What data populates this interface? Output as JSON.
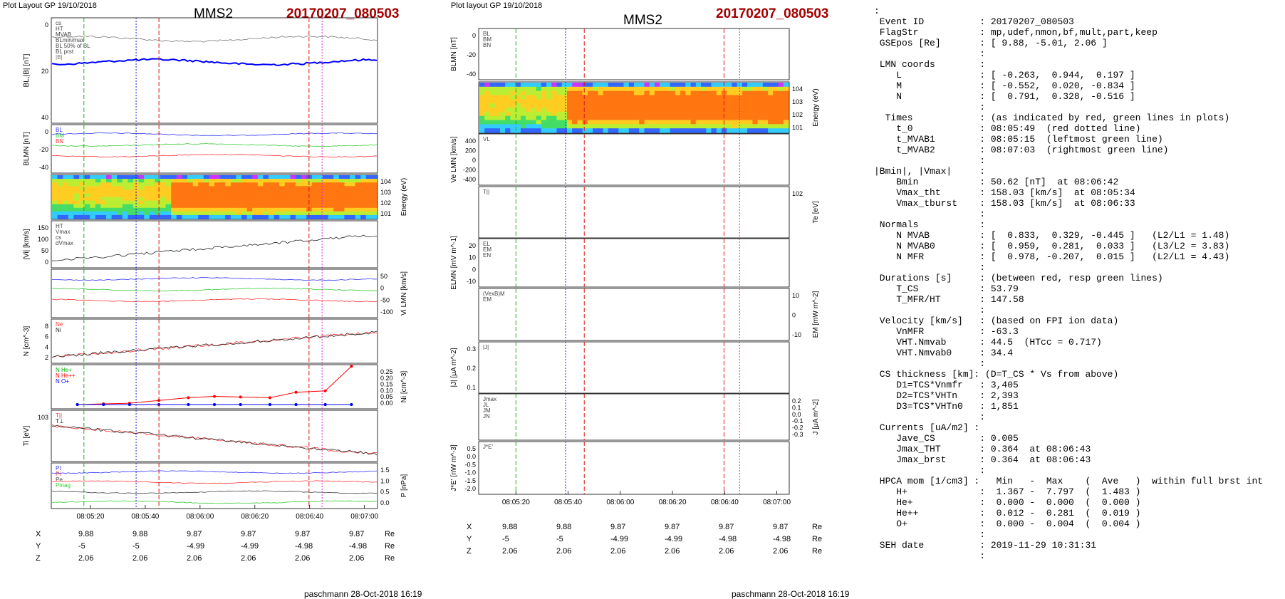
{
  "left_plot": {
    "layout_label": "Plot Layout GP 19/10/2018",
    "spacecraft": "MMS2",
    "event": "20170207_080503",
    "footer": "paschmann 28-Oct-2018 16:19",
    "time_ticks": [
      "08:05:20",
      "08:05:40",
      "08:06:00",
      "08:06:20",
      "08:06:40",
      "08:07:00"
    ],
    "pos_rows": [
      {
        "label": "X",
        "values": [
          "9.88",
          "9.88",
          "9.87",
          "9.87",
          "9.87",
          "9.87"
        ],
        "unit": "Re"
      },
      {
        "label": "Y",
        "values": [
          "-5",
          "-5",
          "-4.99",
          "-4.99",
          "-4.98",
          "-4.98"
        ],
        "unit": "Re"
      },
      {
        "label": "Z",
        "values": [
          "2.06",
          "2.06",
          "2.06",
          "2.06",
          "2.06",
          "2.06"
        ],
        "unit": "Re"
      }
    ]
  },
  "right_plot": {
    "layout_label": "Plot layout GP 19/10/2018",
    "spacecraft": "MMS2",
    "event": "20170207_080503",
    "footer": "paschmann 28-Oct-2018 16:19",
    "time_ticks": [
      "08:05:20",
      "08:05:40",
      "08:06:00",
      "08:06:20",
      "08:06:40",
      "08:07:00"
    ],
    "pos_rows": [
      {
        "label": "X",
        "values": [
          "9.88",
          "9.88",
          "9.87",
          "9.87",
          "9.87",
          "9.87"
        ],
        "unit": "Re"
      },
      {
        "label": "Y",
        "values": [
          "-5",
          "-5",
          "-4.99",
          "-4.99",
          "-4.98",
          "-4.98"
        ],
        "unit": "Re"
      },
      {
        "label": "Z",
        "values": [
          "2.06",
          "2.06",
          "2.06",
          "2.06",
          "2.06",
          "2.06"
        ],
        "unit": "Re"
      }
    ]
  },
  "summary_text": ":\n Event ID          : 20170207_080503\n FlagStr           : mp,udef,nmon,bf,mult,part,keep\n GSEpos [Re]       : [ 9.88, -5.01, 2.06 ]\n                   :\n LMN coords        :\n    L              : [ -0.263,  0.944,  0.197 ]\n    M              : [ -0.552,  0.020, -0.834 ]\n    N              : [  0.791,  0.328, -0.516 ]\n                   :\n  Times            : (as indicated by red, green lines in plots)\n    t_0            : 08:05:49  (red dotted line)\n    t_MVAB1        : 08:05:15  (leftmost green line)\n    t_MVAB2        : 08:07:03  (rightmost green line)\n                   :\n|Bmin|, |Vmax|     :\n    Bmin           : 50.62 [nT]  at 08:06:42\n    Vmax_tht       : 158.03 [km/s]  at 08:05:34\n    Vmax_tburst    : 158.03 [km/s]  at 08:06:33\n                   :\n Normals           :\n    N MVAB         : [  0.833,  0.329, -0.445 ]   (L2/L1 = 1.48)\n    N MVAB0        : [  0.959,  0.281,  0.033 ]   (L3/L2 = 3.83)\n    N MFR          : [  0.978, -0.207,  0.015 ]   (L2/L1 = 4.43)\n                   :\n Durations [s]     : (between red, resp green lines)\n    T_CS           : 53.79\n    T_MFR/HT       : 147.58\n                   :\n Velocity [km/s]   : (based on FPI ion data)\n    VnMFR          : -63.3\n    VHT.Nmvab      : 44.5  (HTcc = 0.717)\n    VHT.Nmvab0     : 34.4\n                   :\n CS thickness [km]: (D=T_CS * Vs from above)\n    D1=TCS*Vnmfr   : 3,405\n    D2=TCS*VHTn    : 2,393\n    D3=TCS*VHTn0   : 1,851\n                   :\n Currents [uA/m2] :\n    Jave_CS        : 0.005\n    Jmax_THT       : 0.364  at 08:06:43\n    Jmax_brst      : 0.364  at 08:06:43\n                   :\n HPCA mom [1/cm3] :   Min   -  Max    (  Ave   )  within full brst int\n    H+             :  1.367 -  7.797  (  1.483 )\n    He+            :  0.000 -  0.000  (  0.000 )\n    He++           :  0.012 -  0.281  (  0.019 )\n    O+             :  0.000 -  0.004  (  0.004 )\n                   :\n SEH date          : 2019-11-29 10:31:31\n                   :",
  "chart_data": [
    {
      "type": "line",
      "title": "MMS2 20170207_080503 (left stack)",
      "x_ticks": [
        "08:05:20",
        "08:05:40",
        "08:06:00",
        "08:06:20",
        "08:06:40",
        "08:07:00"
      ],
      "panels": [
        {
          "name": "B",
          "ylabel": "BL,|B| [nT]",
          "ticks": [
            "0",
            "20",
            "40"
          ],
          "legend": [
            "cs",
            "HT",
            "MVAB",
            "BLmin/max",
            "BL 50% of BL",
            "BL prst",
            "|B|"
          ],
          "series": [
            {
              "name": "|B|",
              "color": "#777777"
            },
            {
              "name": "BL",
              "color": "#0000ff"
            }
          ]
        },
        {
          "name": "BLMN",
          "ylabel": "BLMN [nT]",
          "ticks": [
            "0",
            "-20",
            "-40"
          ],
          "legend": [
            "BL",
            "BM",
            "BN"
          ],
          "series": [
            {
              "name": "BL",
              "color": "#3333ff"
            },
            {
              "name": "BM",
              "color": "#33cc33"
            },
            {
              "name": "BN",
              "color": "#ff3333"
            }
          ]
        },
        {
          "name": "spectrogram",
          "ylabel": "Energy (eV)",
          "ticks": [
            "10^4",
            "10^3",
            "10^2",
            "10^1"
          ]
        },
        {
          "name": "Vi",
          "ylabel": "|Vi| [km/s]",
          "ticks": [
            "150",
            "100",
            "50",
            "0"
          ],
          "legend": [
            "HT",
            "Vmax",
            "cs",
            "dVmax"
          ],
          "series": [
            {
              "name": "|Vi|",
              "color": "#222222"
            }
          ]
        },
        {
          "name": "ViLMN",
          "ylabel": "Vi LMN [km/s]",
          "ticks": [
            "50",
            "0",
            "-50",
            "-100"
          ],
          "series": [
            {
              "name": "VL",
              "color": "#3333ff"
            },
            {
              "name": "VM",
              "color": "#33cc33"
            },
            {
              "name": "VN",
              "color": "#ff3333"
            }
          ]
        },
        {
          "name": "N",
          "ylabel": "N [cm^-3]",
          "ticks": [
            "8",
            "6",
            "4",
            "2"
          ],
          "legend": [
            "Ne",
            "Ni"
          ],
          "series": [
            {
              "name": "Ne",
              "color": "#ff3333"
            },
            {
              "name": "Ni",
              "color": "#222222"
            }
          ]
        },
        {
          "name": "Ni",
          "ylabel": "Ni [cm^-3]",
          "ticks": [
            "0.25",
            "0.20",
            "0.15",
            "0.10",
            "0.05",
            "0.00"
          ],
          "legend": [
            "N He+",
            "N He++",
            "N O+"
          ],
          "x": [
            0.08,
            0.16,
            0.24,
            0.33,
            0.42,
            0.5,
            0.58,
            0.67,
            0.75,
            0.84,
            0.92
          ],
          "series": [
            {
              "name": "N He++",
              "color": "#ff0000",
              "values": [
                0.0,
                0.005,
                0.01,
                0.03,
                0.05,
                0.06,
                0.055,
                0.05,
                0.09,
                0.1,
                0.28
              ]
            },
            {
              "name": "N He+",
              "color": "#00aa00",
              "values": [
                0,
                0,
                0,
                0,
                0,
                0,
                0,
                0,
                0,
                0,
                0
              ]
            },
            {
              "name": "N O+",
              "color": "#0000ff",
              "values": [
                0,
                0,
                0,
                0,
                0,
                0,
                0,
                0,
                0,
                0,
                0
              ]
            }
          ]
        },
        {
          "name": "Ti",
          "ylabel": "Ti [eV]",
          "ticks": [
            "10^3"
          ],
          "legend": [
            "T||",
            "T⊥"
          ],
          "series": [
            {
              "name": "T||",
              "color": "#ff3333"
            },
            {
              "name": "T⊥",
              "color": "#222222"
            }
          ]
        },
        {
          "name": "P",
          "ylabel": "P [nPa]",
          "ticks": [
            "1.5",
            "1.0",
            "0.5",
            "0.0"
          ],
          "legend": [
            "Pt",
            "Pi",
            "Pe",
            "Pmag"
          ],
          "series": [
            {
              "name": "Pt",
              "color": "#3333ff"
            },
            {
              "name": "Pi",
              "color": "#ff3333"
            },
            {
              "name": "Pe",
              "color": "#444444"
            },
            {
              "name": "Pmag",
              "color": "#33cc33"
            }
          ]
        }
      ]
    },
    {
      "type": "line",
      "title": "MMS2 20170207_080503 (right stack)",
      "x_ticks": [
        "08:05:20",
        "08:05:40",
        "08:06:00",
        "08:06:20",
        "08:06:40",
        "08:07:00"
      ],
      "panels": [
        {
          "name": "BLMN",
          "ylabel": "BLMN [nT]",
          "ticks": [
            "0",
            "-20",
            "-40"
          ],
          "legend": [
            "BL",
            "BM",
            "BN"
          ]
        },
        {
          "name": "spectrogram",
          "ylabel": "Energy (eV)",
          "ticks": [
            "10^4",
            "10^3",
            "10^2",
            "10^1"
          ]
        },
        {
          "name": "VeLMN",
          "ylabel": "Ve LMN [km/s]",
          "ticks": [
            "400",
            "200",
            "0",
            "-200",
            "-400"
          ],
          "legend": [
            "VL"
          ]
        },
        {
          "name": "Te",
          "ylabel": "Te [eV]",
          "ticks": [
            "10^2"
          ],
          "legend": [
            "T||"
          ]
        },
        {
          "name": "ELMN",
          "ylabel": "ELMN [mV m^-1]",
          "ticks": [
            "20",
            "10",
            "0",
            "-10"
          ],
          "legend": [
            "EL",
            "EM",
            "EN"
          ]
        },
        {
          "name": "EM",
          "ylabel": "EM [mW m^-2]",
          "ticks": [
            "10",
            "0",
            "-10"
          ],
          "legend": [
            "(VexB)M",
            "EM"
          ]
        },
        {
          "name": "J",
          "ylabel": "|J| [μA m^-2]",
          "ticks": [
            "0.3",
            "0.2",
            "0.1"
          ],
          "legend": [
            "|J|"
          ]
        },
        {
          "name": "JLMN",
          "ylabel": "J [μA m^-2]",
          "ticks": [
            "0.2",
            "0.1",
            "0.0",
            "-0.1",
            "-0.2",
            "-0.3"
          ],
          "legend": [
            "Jmax",
            "JL",
            "JM",
            "JN"
          ]
        },
        {
          "name": "JdotE",
          "ylabel": "J*E' [nW m^-3]",
          "ticks": [
            "0.5",
            "0.0",
            "-0.5",
            "-1.0",
            "-1.5",
            "-2.0"
          ],
          "legend": [
            "J*E'"
          ]
        }
      ]
    }
  ]
}
